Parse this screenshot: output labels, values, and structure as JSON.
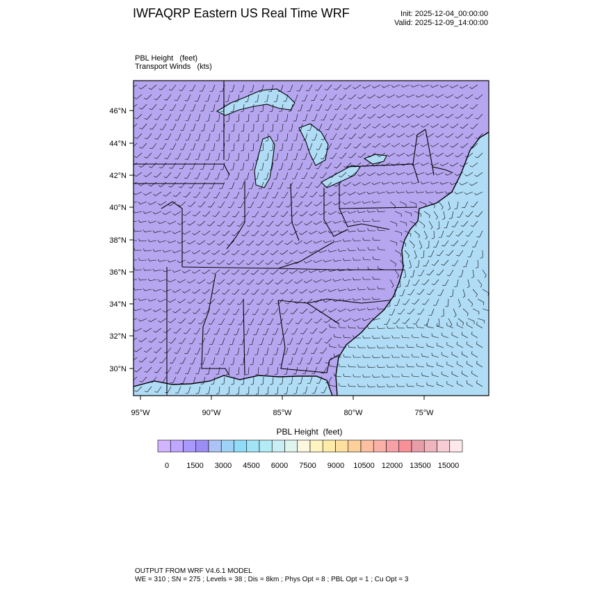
{
  "header": {
    "title": "IWFAQRP Eastern US Real Time WRF",
    "init": "Init: 2025-12-04_00:00:00",
    "valid": "Valid: 2025-12-09_14:00:00"
  },
  "fields": {
    "primary": "PBL Height   (feet)",
    "secondary": "Transport Winds   (kts)"
  },
  "map": {
    "lat_labels": [
      "46°N",
      "44°N",
      "42°N",
      "40°N",
      "38°N",
      "36°N",
      "34°N",
      "32°N",
      "30°N"
    ],
    "lon_labels": [
      "95°W",
      "90°W",
      "85°W",
      "80°W",
      "75°W"
    ],
    "land_color": "#b6a6ef",
    "ocean_color": "#b0dcf6"
  },
  "colorbar": {
    "title": "PBL Height  (feet)",
    "labels": [
      "0",
      "1500",
      "3000",
      "4500",
      "6000",
      "7500",
      "9000",
      "10500",
      "12000",
      "13500",
      "15000"
    ],
    "colors": [
      "#d2b4ff",
      "#bfa6ff",
      "#ab98ff",
      "#9c8cf5",
      "#aec3f5",
      "#9ed3f8",
      "#90dcf9",
      "#a0e4f6",
      "#b4ecf6",
      "#c8f0f4",
      "#e0f4ee",
      "#fcf8e0",
      "#fff4c0",
      "#fdeca8",
      "#fde0a0",
      "#fcd098",
      "#fcc0a0",
      "#fbb0a8",
      "#f7a0a8",
      "#f89098",
      "#e89ea8",
      "#f0b4bc",
      "#f8ccd4",
      "#fde8ec"
    ]
  },
  "footer": {
    "line1": "OUTPUT FROM WRF V4.6.1 MODEL",
    "line2": "WE = 310 ; SN = 275 ; Levels = 38 ; Dis = 8km ; Phys Opt = 8 ; PBL Opt = 1 ; Cu Opt = 3"
  }
}
